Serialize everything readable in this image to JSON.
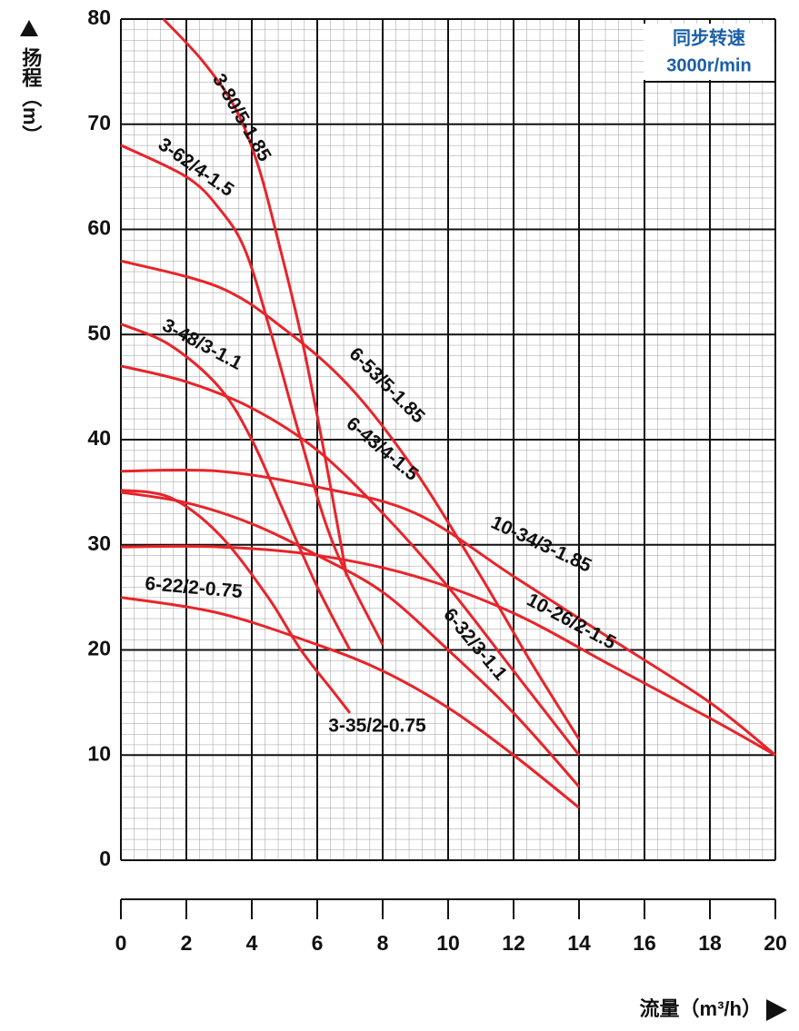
{
  "chart_data": {
    "type": "line",
    "xlabel": "流量（m³/h）",
    "ylabel": "扬程（m）",
    "annotations": [
      "同步转速",
      "3000r/min"
    ],
    "xlim": [
      0,
      20
    ],
    "xticks": [
      0,
      2,
      4,
      6,
      8,
      10,
      12,
      14,
      16,
      18,
      20
    ],
    "ylim": [
      0,
      80
    ],
    "yticks": [
      0,
      10,
      20,
      30,
      40,
      50,
      60,
      70,
      80
    ],
    "grid": true,
    "series": [
      {
        "name": "3-80/5-1.85",
        "color": "#e8242a",
        "x": [
          1.3,
          2.5,
          3.5,
          4.2,
          4.8,
          5.5,
          6.2,
          6.9
        ],
        "values": [
          80,
          76,
          71.5,
          66,
          59,
          50,
          39,
          27
        ]
      },
      {
        "name": "3-62/4-1.5",
        "color": "#e8242a",
        "x": [
          0,
          2,
          3,
          3.8,
          4.6,
          5.5,
          6.5,
          8
        ],
        "values": [
          68,
          65,
          62,
          58,
          50,
          40,
          30,
          20.5
        ]
      },
      {
        "name": "6-53/5-1.85",
        "color": "#e8242a",
        "x": [
          0,
          3,
          5,
          7,
          9,
          11,
          12.5,
          14
        ],
        "values": [
          57,
          54.5,
          50.5,
          45,
          37,
          27,
          19,
          11.5
        ]
      },
      {
        "name": "3-48/3-1.1",
        "color": "#e8242a",
        "x": [
          0,
          1.5,
          3,
          4,
          5,
          6,
          7
        ],
        "values": [
          51,
          49,
          45,
          40,
          33,
          26,
          20
        ]
      },
      {
        "name": "6-43/4-1.5",
        "color": "#e8242a",
        "x": [
          0,
          2,
          4,
          6,
          8,
          10,
          12,
          14
        ],
        "values": [
          47,
          45.5,
          43,
          39,
          33,
          26,
          18,
          10
        ]
      },
      {
        "name": "10-34/3-1.85",
        "color": "#e8242a",
        "x": [
          0,
          3,
          6,
          9,
          12,
          15,
          18,
          20
        ],
        "values": [
          37,
          37,
          35.5,
          33,
          27,
          21,
          15,
          10
        ]
      },
      {
        "name": "10-26/2-1.5",
        "color": "#e8242a",
        "x": [
          0,
          3,
          6,
          9,
          12,
          15,
          18,
          20
        ],
        "values": [
          29.8,
          29.8,
          29,
          27,
          23.5,
          18.5,
          13.5,
          10
        ]
      },
      {
        "name": "6-32/3-1.1",
        "color": "#e8242a",
        "x": [
          0,
          2,
          4,
          6,
          8,
          10,
          12,
          14
        ],
        "values": [
          35,
          34,
          32,
          29,
          25.5,
          20,
          14,
          7
        ]
      },
      {
        "name": "6-22/2-0.75",
        "color": "#e8242a",
        "x": [
          0,
          3,
          6,
          8,
          10,
          12,
          14
        ],
        "values": [
          25,
          23.5,
          20.5,
          18,
          14.5,
          10,
          5
        ]
      },
      {
        "name": "3-35/2-0.75",
        "color": "#e8242a",
        "x": [
          0,
          1.5,
          3,
          4.5,
          5.5,
          6.5,
          7
        ],
        "values": [
          35.2,
          34.5,
          31,
          25,
          20,
          16,
          14
        ]
      }
    ]
  }
}
